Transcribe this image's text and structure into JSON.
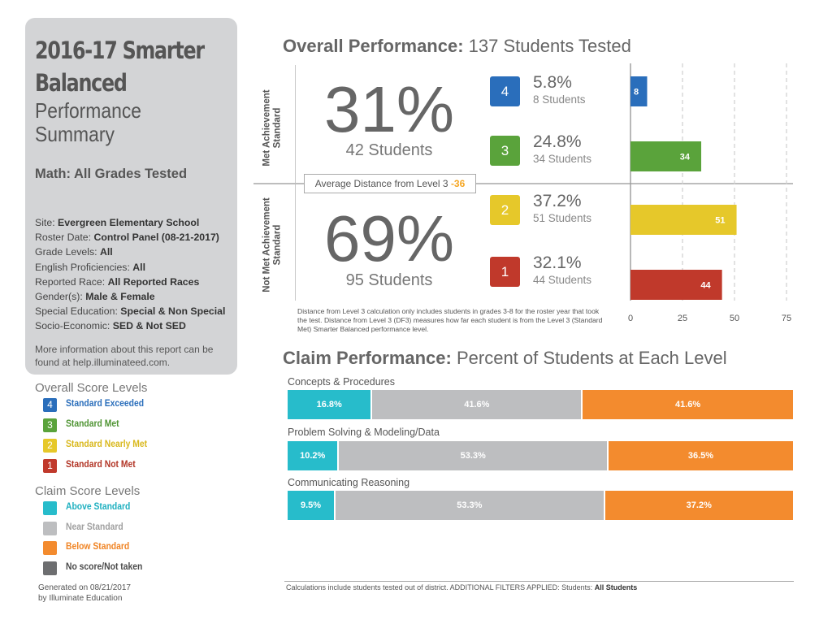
{
  "summary": {
    "title_line1": "2016-17 Smarter",
    "title_line2": "Balanced",
    "subtitle_line1": "Performance",
    "subtitle_line2": "Summary",
    "math_heading": "Math: All Grades Tested",
    "filters": [
      {
        "label": "Site:",
        "value": "Evergreen Elementary School"
      },
      {
        "label": "Roster Date:",
        "value": "Control Panel (08-21-2017)"
      },
      {
        "label": "Grade Levels:",
        "value": "All"
      },
      {
        "label": "English Proficiencies:",
        "value": "All"
      },
      {
        "label": "Reported Race:",
        "value": "All Reported Races"
      },
      {
        "label": "Gender(s):",
        "value": "Male & Female"
      },
      {
        "label": "Special Education:",
        "value": "Special & Non Special"
      },
      {
        "label": "Socio-Economic:",
        "value": "SED & Not SED"
      }
    ],
    "more_info": "More information about this report can be found at help.illuminateed.com."
  },
  "overall_legend": {
    "title": "Overall Score Levels",
    "items": [
      {
        "badge": "4",
        "label": "Standard Exceeded",
        "color": "#2a6ebb",
        "text_color": "#2a6ebb"
      },
      {
        "badge": "3",
        "label": "Standard Met",
        "color": "#5aa33b",
        "text_color": "#4f9433"
      },
      {
        "badge": "2",
        "label": "Standard Nearly Met",
        "color": "#e6c82a",
        "text_color": "#d9b81c"
      },
      {
        "badge": "1",
        "label": "Standard Not Met",
        "color": "#c0392b",
        "text_color": "#b23526"
      }
    ]
  },
  "claim_legend": {
    "title": "Claim Score Levels",
    "items": [
      {
        "label": "Above Standard",
        "color": "#27bccb",
        "text_color": "#1fb0c0"
      },
      {
        "label": "Near Standard",
        "color": "#bdbec0",
        "text_color": "#a0a0a0"
      },
      {
        "label": "Below Standard",
        "color": "#f38b2e",
        "text_color": "#f08424"
      },
      {
        "label": "No score/Not taken",
        "color": "#6d6e70",
        "text_color": "#4a4a4a"
      }
    ]
  },
  "generated": {
    "line1": "Generated on 08/21/2017",
    "line2": "by Illuminate Education"
  },
  "overall": {
    "heading_bold": "Overall Performance:",
    "heading_rest": " 137 Students Tested",
    "met_label": "Met Achievement Standard",
    "not_met_label": "Not Met Achievement Standard",
    "met_pct": "31%",
    "met_students": "42 Students",
    "not_met_pct": "69%",
    "not_met_students": "95 Students",
    "avg_distance_label": "Average Distance from Level 3",
    "avg_distance_value": "-36",
    "levels": [
      {
        "badge": "4",
        "pct": "5.8%",
        "students": "8 Students",
        "color": "#2a6ebb"
      },
      {
        "badge": "3",
        "pct": "24.8%",
        "students": "34 Students",
        "color": "#5aa33b"
      },
      {
        "badge": "2",
        "pct": "37.2%",
        "students": "51 Students",
        "color": "#e6c82a"
      },
      {
        "badge": "1",
        "pct": "32.1%",
        "students": "44 Students",
        "color": "#c0392b"
      }
    ],
    "note": "Distance from Level 3 calculation only includes students in grades 3-8 for the roster year that took the test. Distance from Level 3 (DF3) measures how far each student is from the Level 3 (Standard Met) Smarter Balanced performance level."
  },
  "claims": {
    "heading_bold": "Claim Performance:",
    "heading_rest": " Percent of Students at Each Level",
    "rows": [
      {
        "label": "Concepts & Procedures",
        "segments": [
          {
            "value": 16.8,
            "text": "16.8%",
            "color": "#27bccb"
          },
          {
            "value": 41.6,
            "text": "41.6%",
            "color": "#bdbec0"
          },
          {
            "value": 41.6,
            "text": "41.6%",
            "color": "#f38b2e"
          }
        ]
      },
      {
        "label": "Problem Solving & Modeling/Data",
        "segments": [
          {
            "value": 10.2,
            "text": "10.2%",
            "color": "#27bccb"
          },
          {
            "value": 53.3,
            "text": "53.3%",
            "color": "#bdbec0"
          },
          {
            "value": 36.5,
            "text": "36.5%",
            "color": "#f38b2e"
          }
        ]
      },
      {
        "label": "Communicating Reasoning",
        "segments": [
          {
            "value": 9.5,
            "text": "9.5%",
            "color": "#27bccb"
          },
          {
            "value": 53.3,
            "text": "53.3%",
            "color": "#bdbec0"
          },
          {
            "value": 37.2,
            "text": "37.2%",
            "color": "#f38b2e"
          }
        ]
      }
    ]
  },
  "footer": {
    "text": "Calculations include students tested out of district. ADDITIONAL FILTERS APPLIED:  Students:",
    "value": "All Students"
  },
  "chart_data": {
    "type": "bar",
    "orientation": "horizontal",
    "categories": [
      "4",
      "3",
      "2",
      "1"
    ],
    "values": [
      8,
      34,
      51,
      44
    ],
    "colors": [
      "#2a6ebb",
      "#5aa33b",
      "#e6c82a",
      "#c0392b"
    ],
    "xlim": [
      0,
      75
    ],
    "xticks": [
      0,
      25,
      50,
      75
    ],
    "grid": true
  }
}
